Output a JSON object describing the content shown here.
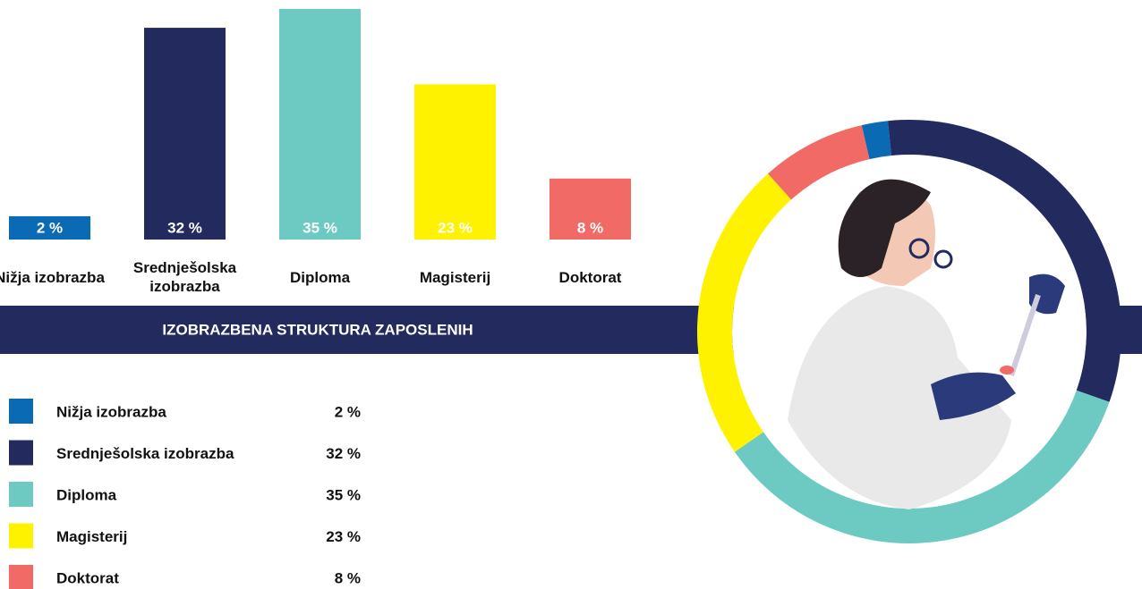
{
  "chart_data": {
    "type": "bar",
    "title": "IZOBRAZBENA STRUKTURA ZAPOSLENIH",
    "categories": [
      "Nižja izobrazba",
      "Srednješolska izobrazba",
      "Diploma",
      "Magisterij",
      "Doktorat"
    ],
    "values": [
      2,
      32,
      35,
      23,
      8
    ],
    "value_labels": [
      "2 %",
      "32 %",
      "35 %",
      "23 %",
      "8 %"
    ],
    "colors": [
      "#0a6ab3",
      "#222a5e",
      "#6ccac3",
      "#fff200",
      "#f26a66"
    ]
  }
}
